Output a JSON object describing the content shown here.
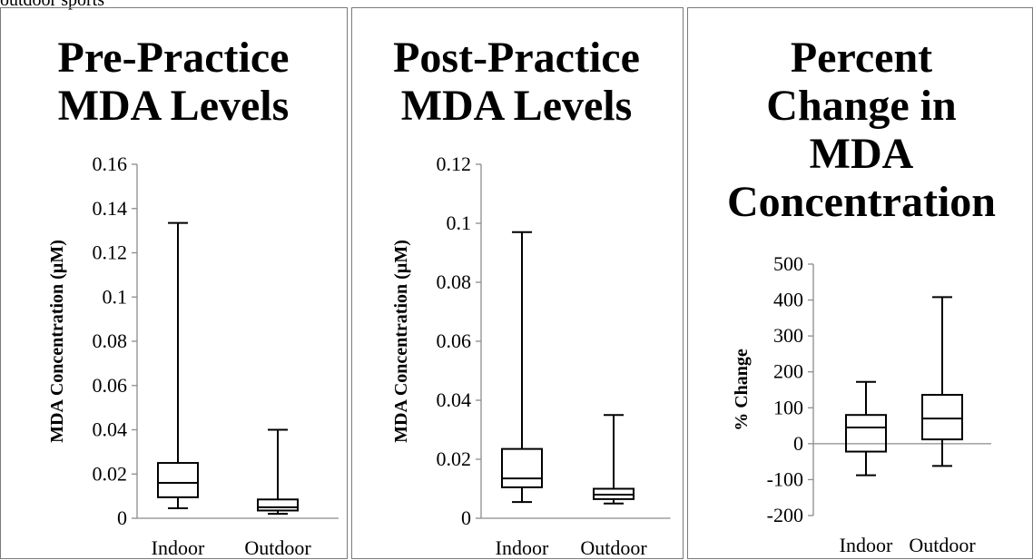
{
  "caption": "outdoor sports",
  "chart_data": [
    {
      "type": "box",
      "title": [
        "Pre-Practice",
        "MDA Levels"
      ],
      "ylabel": "MDA Concentration (µM)",
      "categories": [
        "Indoor",
        "Outdoor"
      ],
      "ylim": [
        0,
        0.16
      ],
      "yticks": [
        "0",
        "0.02",
        "0.04",
        "0.06",
        "0.08",
        "0.1",
        "0.12",
        "0.14",
        "0.16"
      ],
      "boxes": [
        {
          "name": "Indoor",
          "min": 0.0045,
          "q1": 0.0095,
          "median": 0.016,
          "q3": 0.025,
          "max": 0.1335
        },
        {
          "name": "Outdoor",
          "min": 0.002,
          "q1": 0.0035,
          "median": 0.005,
          "q3": 0.0085,
          "max": 0.04
        }
      ]
    },
    {
      "type": "box",
      "title": [
        "Post-Practice",
        "MDA Levels"
      ],
      "ylabel": "MDA Concentration (µM)",
      "categories": [
        "Indoor",
        "Outdoor"
      ],
      "ylim": [
        0,
        0.12
      ],
      "yticks": [
        "0",
        "0.02",
        "0.04",
        "0.06",
        "0.08",
        "0.1",
        "0.12"
      ],
      "boxes": [
        {
          "name": "Indoor",
          "min": 0.0055,
          "q1": 0.0105,
          "median": 0.0135,
          "q3": 0.0235,
          "max": 0.097
        },
        {
          "name": "Outdoor",
          "min": 0.005,
          "q1": 0.0065,
          "median": 0.008,
          "q3": 0.01,
          "max": 0.035
        }
      ]
    },
    {
      "type": "box",
      "title": [
        "Percent",
        "Change in",
        "MDA",
        "Concentration"
      ],
      "ylabel": "% Change",
      "categories": [
        "Indoor",
        "Outdoor"
      ],
      "ylim": [
        -200,
        500
      ],
      "yticks": [
        "-200",
        "-100",
        "0",
        "100",
        "200",
        "300",
        "400",
        "500"
      ],
      "boxes": [
        {
          "name": "Indoor",
          "min": -88,
          "q1": -22,
          "median": 45,
          "q3": 80,
          "max": 172
        },
        {
          "name": "Outdoor",
          "min": -62,
          "q1": 12,
          "median": 70,
          "q3": 136,
          "max": 408
        }
      ]
    }
  ]
}
